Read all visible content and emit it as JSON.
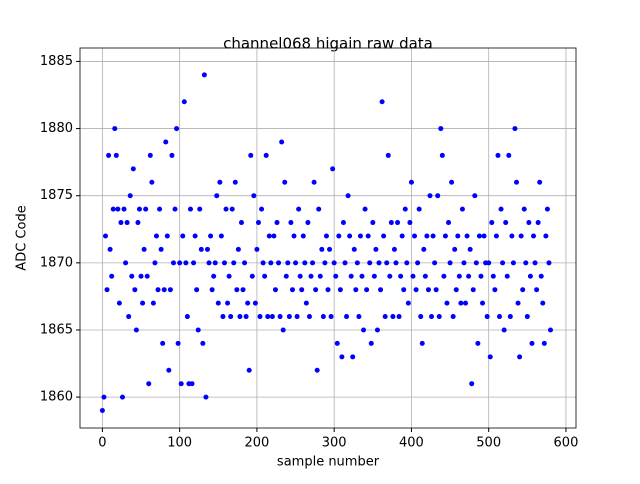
{
  "chart_data": {
    "type": "scatter",
    "title": "channel068 higain raw data",
    "x_label": "sample number",
    "y_label": "ADC Code",
    "x": [
      0,
      2,
      4,
      6,
      8,
      10,
      12,
      14,
      16,
      18,
      20,
      22,
      24,
      26,
      28,
      30,
      32,
      34,
      36,
      38,
      40,
      42,
      44,
      46,
      48,
      50,
      52,
      54,
      56,
      58,
      60,
      62,
      64,
      66,
      68,
      70,
      72,
      74,
      76,
      78,
      80,
      82,
      84,
      86,
      88,
      90,
      92,
      94,
      96,
      98,
      100,
      102,
      104,
      106,
      108,
      110,
      112,
      114,
      116,
      118,
      120,
      122,
      124,
      126,
      128,
      130,
      132,
      134,
      136,
      138,
      140,
      142,
      144,
      146,
      148,
      150,
      152,
      154,
      156,
      158,
      160,
      162,
      164,
      166,
      168,
      170,
      172,
      174,
      176,
      178,
      180,
      182,
      184,
      186,
      188,
      190,
      192,
      194,
      196,
      198,
      200,
      202,
      204,
      206,
      208,
      210,
      212,
      214,
      216,
      218,
      220,
      222,
      224,
      226,
      228,
      230,
      232,
      234,
      236,
      238,
      240,
      242,
      244,
      246,
      248,
      250,
      252,
      254,
      256,
      258,
      260,
      262,
      264,
      266,
      268,
      270,
      272,
      274,
      276,
      278,
      280,
      282,
      284,
      286,
      288,
      290,
      292,
      294,
      296,
      298,
      300,
      302,
      304,
      306,
      308,
      310,
      312,
      314,
      316,
      318,
      320,
      322,
      324,
      326,
      328,
      330,
      332,
      334,
      336,
      338,
      340,
      342,
      344,
      346,
      348,
      350,
      352,
      354,
      356,
      358,
      360,
      362,
      364,
      366,
      368,
      370,
      372,
      374,
      376,
      378,
      380,
      382,
      384,
      386,
      388,
      390,
      392,
      394,
      396,
      398,
      400,
      402,
      404,
      406,
      408,
      410,
      412,
      414,
      416,
      418,
      420,
      422,
      424,
      426,
      428,
      430,
      432,
      434,
      436,
      438,
      440,
      442,
      444,
      446,
      448,
      450,
      452,
      454,
      456,
      458,
      460,
      462,
      464,
      466,
      468,
      470,
      472,
      474,
      476,
      478,
      480,
      482,
      484,
      486,
      488,
      490,
      492,
      494,
      496,
      498,
      500,
      502,
      504,
      506,
      508,
      510,
      512,
      514,
      516,
      518,
      520,
      522,
      524,
      526,
      528,
      530,
      532,
      534,
      536,
      538,
      540,
      542,
      544,
      546,
      548,
      550,
      552,
      554,
      556,
      558,
      560,
      562,
      564,
      566,
      568,
      570,
      572,
      574,
      576,
      578,
      580
    ],
    "values": [
      1859,
      1860,
      1872,
      1868,
      1878,
      1871,
      1869,
      1874,
      1880,
      1878,
      1874,
      1867,
      1873,
      1860,
      1874,
      1870,
      1873,
      1866,
      1875,
      1869,
      1877,
      1868,
      1865,
      1873,
      1874,
      1869,
      1867,
      1871,
      1874,
      1869,
      1861,
      1878,
      1876,
      1867,
      1870,
      1872,
      1868,
      1874,
      1871,
      1864,
      1868,
      1879,
      1872,
      1862,
      1868,
      1878,
      1870,
      1874,
      1880,
      1864,
      1870,
      1861,
      1872,
      1882,
      1870,
      1866,
      1861,
      1874,
      1861,
      1870,
      1872,
      1868,
      1865,
      1874,
      1871,
      1864,
      1884,
      1860,
      1871,
      1870,
      1872,
      1868,
      1869,
      1870,
      1875,
      1867,
      1876,
      1872,
      1866,
      1870,
      1874,
      1867,
      1869,
      1866,
      1874,
      1870,
      1876,
      1868,
      1871,
      1866,
      1873,
      1868,
      1870,
      1866,
      1867,
      1862,
      1878,
      1869,
      1875,
      1867,
      1871,
      1873,
      1866,
      1874,
      1870,
      1869,
      1878,
      1866,
      1872,
      1870,
      1866,
      1872,
      1868,
      1873,
      1870,
      1866,
      1879,
      1865,
      1876,
      1869,
      1870,
      1866,
      1873,
      1868,
      1872,
      1870,
      1866,
      1874,
      1869,
      1868,
      1872,
      1870,
      1867,
      1873,
      1866,
      1869,
      1870,
      1876,
      1868,
      1862,
      1874,
      1869,
      1871,
      1866,
      1870,
      1872,
      1868,
      1871,
      1866,
      1877,
      1870,
      1869,
      1864,
      1872,
      1868,
      1863,
      1873,
      1870,
      1866,
      1875,
      1872,
      1869,
      1863,
      1871,
      1868,
      1870,
      1866,
      1872,
      1869,
      1865,
      1874,
      1868,
      1872,
      1870,
      1864,
      1873,
      1869,
      1871,
      1865,
      1870,
      1868,
      1882,
      1872,
      1866,
      1870,
      1878,
      1869,
      1873,
      1866,
      1871,
      1870,
      1873,
      1866,
      1869,
      1872,
      1868,
      1874,
      1870,
      1867,
      1873,
      1876,
      1869,
      1872,
      1868,
      1870,
      1874,
      1866,
      1864,
      1871,
      1869,
      1872,
      1868,
      1875,
      1866,
      1872,
      1870,
      1868,
      1875,
      1866,
      1880,
      1878,
      1869,
      1872,
      1867,
      1873,
      1870,
      1876,
      1866,
      1871,
      1868,
      1872,
      1869,
      1867,
      1874,
      1870,
      1867,
      1872,
      1869,
      1871,
      1861,
      1868,
      1875,
      1870,
      1864,
      1872,
      1869,
      1867,
      1872,
      1870,
      1866,
      1870,
      1863,
      1873,
      1869,
      1868,
      1872,
      1878,
      1866,
      1874,
      1870,
      1865,
      1873,
      1869,
      1878,
      1866,
      1872,
      1870,
      1880,
      1876,
      1867,
      1863,
      1872,
      1868,
      1874,
      1870,
      1866,
      1873,
      1869,
      1864,
      1872,
      1870,
      1868,
      1873,
      1876,
      1869,
      1867,
      1864,
      1872,
      1874,
      1870,
      1865
    ],
    "color": "#0000ff",
    "xlim": [
      -29,
      613
    ],
    "ylim": [
      1857.7,
      1886
    ],
    "xticks": [
      0,
      100,
      200,
      300,
      400,
      500,
      600
    ],
    "yticks": [
      1860,
      1865,
      1870,
      1875,
      1880,
      1885
    ],
    "grid": true
  }
}
